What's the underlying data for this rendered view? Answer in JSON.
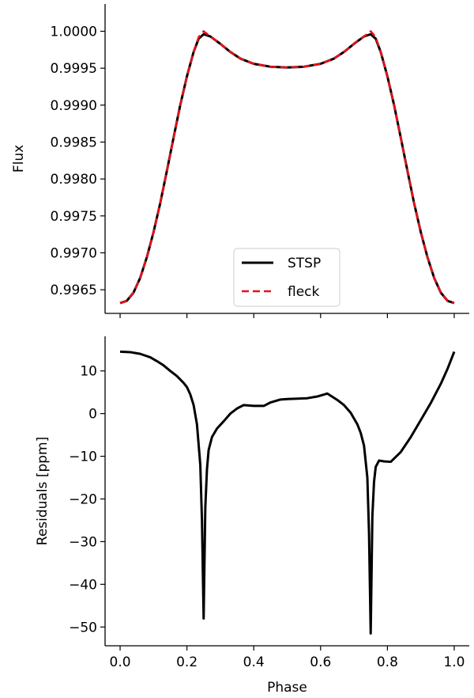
{
  "chart_data": [
    {
      "type": "line",
      "xlim": [
        -0.045,
        1.045
      ],
      "ylim": [
        0.99618,
        1.00037
      ],
      "xticks": [
        0.0,
        0.2,
        0.4,
        0.6,
        0.8,
        1.0
      ],
      "yticks": [
        0.9965,
        0.997,
        0.9975,
        0.998,
        0.9985,
        0.999,
        0.9995,
        1.0
      ],
      "ytick_labels": [
        "0.9965",
        "0.9970",
        "0.9975",
        "0.9980",
        "0.9985",
        "0.9990",
        "0.9995",
        "1.0000"
      ],
      "xtick_labels_shown": false,
      "ylabel": "Flux",
      "legend": "lower-center",
      "series": [
        {
          "name": "STSP",
          "color": "#000000",
          "style": "solid",
          "x": [
            0.0,
            0.02,
            0.04,
            0.06,
            0.08,
            0.1,
            0.12,
            0.14,
            0.16,
            0.18,
            0.2,
            0.22,
            0.235,
            0.25,
            0.27,
            0.3,
            0.33,
            0.36,
            0.4,
            0.45,
            0.5,
            0.55,
            0.6,
            0.64,
            0.67,
            0.7,
            0.73,
            0.75,
            0.765,
            0.78,
            0.8,
            0.82,
            0.84,
            0.86,
            0.88,
            0.9,
            0.92,
            0.94,
            0.96,
            0.98,
            1.0
          ],
          "y": [
            0.99632,
            0.99635,
            0.99646,
            0.99666,
            0.99694,
            0.99728,
            0.99767,
            0.99811,
            0.99856,
            0.999,
            0.99939,
            0.99972,
            0.9999,
            0.99996,
            0.99993,
            0.99983,
            0.99972,
            0.99963,
            0.99956,
            0.99952,
            0.99951,
            0.99952,
            0.99956,
            0.99963,
            0.99972,
            0.99983,
            0.99993,
            0.99996,
            0.9999,
            0.99972,
            0.99939,
            0.999,
            0.99856,
            0.99811,
            0.99767,
            0.99728,
            0.99694,
            0.99666,
            0.99646,
            0.99635,
            0.99632
          ]
        },
        {
          "name": "fleck",
          "color": "#e8101b",
          "style": "dashed",
          "x": [
            0.0,
            0.02,
            0.04,
            0.06,
            0.08,
            0.1,
            0.12,
            0.14,
            0.16,
            0.18,
            0.2,
            0.22,
            0.235,
            0.25,
            0.27,
            0.3,
            0.33,
            0.36,
            0.4,
            0.45,
            0.5,
            0.55,
            0.6,
            0.64,
            0.67,
            0.7,
            0.73,
            0.75,
            0.765,
            0.78,
            0.8,
            0.82,
            0.84,
            0.86,
            0.88,
            0.9,
            0.92,
            0.94,
            0.96,
            0.98,
            1.0
          ],
          "y": [
            0.99632,
            0.99635,
            0.99646,
            0.99666,
            0.99694,
            0.99728,
            0.99767,
            0.99811,
            0.99856,
            0.999,
            0.99939,
            0.99972,
            0.99992,
            1.0,
            0.99993,
            0.99983,
            0.99972,
            0.99963,
            0.99956,
            0.99952,
            0.99951,
            0.99952,
            0.99956,
            0.99963,
            0.99972,
            0.99983,
            0.99993,
            1.0,
            0.99992,
            0.99972,
            0.99939,
            0.999,
            0.99856,
            0.99811,
            0.99767,
            0.99728,
            0.99694,
            0.99666,
            0.99646,
            0.99635,
            0.99632
          ]
        }
      ]
    },
    {
      "type": "line",
      "xlim": [
        -0.045,
        1.045
      ],
      "ylim": [
        -54.4,
        18.1
      ],
      "xticks": [
        0.0,
        0.2,
        0.4,
        0.6,
        0.8,
        1.0
      ],
      "xtick_labels": [
        "0.0",
        "0.2",
        "0.4",
        "0.6",
        "0.8",
        "1.0"
      ],
      "yticks": [
        -50,
        -40,
        -30,
        -20,
        -10,
        0,
        10
      ],
      "ytick_labels": [
        "−50",
        "−40",
        "−30",
        "−20",
        "−10",
        "0",
        "10"
      ],
      "xlabel": "Phase",
      "ylabel": "Residuals [ppm]",
      "series": [
        {
          "color": "#000000",
          "style": "solid",
          "x": [
            0.0,
            0.03,
            0.06,
            0.09,
            0.11,
            0.13,
            0.15,
            0.17,
            0.19,
            0.2,
            0.21,
            0.22,
            0.23,
            0.24,
            0.245,
            0.25,
            0.255,
            0.26,
            0.265,
            0.275,
            0.29,
            0.31,
            0.33,
            0.35,
            0.37,
            0.4,
            0.43,
            0.45,
            0.48,
            0.5,
            0.53,
            0.56,
            0.59,
            0.62,
            0.65,
            0.67,
            0.69,
            0.71,
            0.72,
            0.73,
            0.74,
            0.745,
            0.75,
            0.755,
            0.76,
            0.765,
            0.775,
            0.79,
            0.81,
            0.84,
            0.87,
            0.9,
            0.93,
            0.96,
            0.98,
            1.0
          ],
          "y": [
            14.5,
            14.4,
            14.0,
            13.2,
            12.3,
            11.3,
            10.0,
            8.8,
            7.2,
            6.2,
            4.5,
            2.0,
            -2.5,
            -12.0,
            -25.0,
            -48.0,
            -22.0,
            -13.0,
            -8.5,
            -5.5,
            -3.5,
            -1.8,
            0.0,
            1.2,
            2.0,
            1.8,
            1.8,
            2.6,
            3.3,
            3.4,
            3.5,
            3.6,
            4.0,
            4.7,
            3.2,
            2.0,
            0.2,
            -2.5,
            -4.5,
            -7.5,
            -15.0,
            -28.0,
            -51.5,
            -24.0,
            -16.0,
            -12.5,
            -11.0,
            -11.2,
            -11.3,
            -9.0,
            -5.5,
            -1.5,
            2.5,
            7.0,
            10.5,
            14.5
          ]
        }
      ]
    }
  ]
}
